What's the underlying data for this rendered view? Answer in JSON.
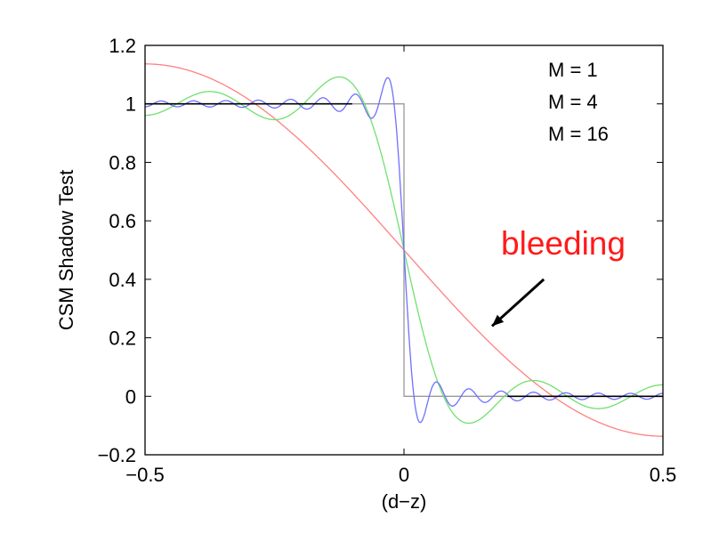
{
  "chart_data": {
    "type": "line",
    "title": "",
    "xlabel": "(d−z)",
    "ylabel": "CSM Shadow Test",
    "xlim": [
      -0.5,
      0.5
    ],
    "ylim": [
      -0.2,
      1.2
    ],
    "xticks": [
      -0.5,
      0,
      0.5
    ],
    "xtick_labels": [
      "−0.5",
      "0",
      "0.5"
    ],
    "yticks": [
      -0.2,
      0,
      0.2,
      0.4,
      0.6,
      0.8,
      1,
      1.2
    ],
    "ytick_labels": [
      "−0.2",
      "0",
      "0.2",
      "0.4",
      "0.6",
      "0.8",
      "1",
      "1.2"
    ],
    "grid": false,
    "legend_position": "top-right",
    "series": [
      {
        "name": "M = 1",
        "terms": 1,
        "color": "#ff8080",
        "legend_color": "#ff2020"
      },
      {
        "name": "M = 4",
        "terms": 4,
        "color": "#70e070",
        "legend_color": "#20e020"
      },
      {
        "name": "M = 16",
        "terms": 16,
        "color": "#7070ff",
        "legend_color": "#2020ff"
      }
    ],
    "reference_step": {
      "x": [
        -0.5,
        0,
        0,
        0.5
      ],
      "y": [
        1,
        1,
        0,
        0
      ],
      "color": "#999999"
    },
    "reference_segments": [
      {
        "x": [
          -0.5,
          -0.1
        ],
        "y": [
          1,
          1
        ],
        "color": "#000000"
      },
      {
        "x": [
          0.2,
          0.5
        ],
        "y": [
          0,
          0
        ],
        "color": "#000000"
      }
    ],
    "annotation": {
      "text": "bleeding",
      "color": "#ff1a1a",
      "arrow_from": [
        0.27,
        0.4
      ],
      "arrow_to": [
        0.17,
        0.24
      ]
    }
  }
}
